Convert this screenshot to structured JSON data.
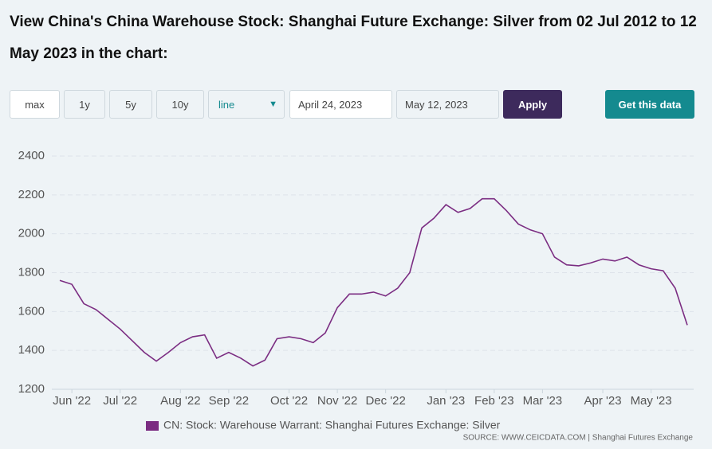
{
  "header": {
    "title": "View China's China Warehouse Stock: Shanghai Future Exchange: Silver from 02 Jul 2012 to 12 May 2023 in the chart:"
  },
  "controls": {
    "ranges": [
      "max",
      "1y",
      "5y",
      "10y"
    ],
    "chart_type": "line",
    "start_date": "April 24, 2023",
    "end_date": "May 12, 2023",
    "apply": "Apply",
    "get_data": "Get this data"
  },
  "chart_data": {
    "type": "line",
    "categories": [
      null,
      "Jun '22",
      null,
      null,
      null,
      "Jul '22",
      null,
      null,
      null,
      null,
      "Aug '22",
      null,
      null,
      null,
      "Sep '22",
      null,
      null,
      null,
      null,
      "Oct '22",
      null,
      null,
      null,
      "Nov '22",
      null,
      null,
      null,
      "Dec '22",
      null,
      null,
      null,
      null,
      "Jan '23",
      null,
      null,
      null,
      "Feb '23",
      null,
      null,
      null,
      "Mar '23",
      null,
      null,
      null,
      null,
      "Apr '23",
      null,
      null,
      null,
      "May '23",
      null,
      null,
      null
    ],
    "series": [
      {
        "name": "CN: Stock: Warehouse Warrant: Shanghai Futures Exchange: Silver",
        "color": "#7b2d82",
        "values": [
          1760,
          1740,
          1640,
          1610,
          1560,
          1510,
          1450,
          1390,
          1345,
          1390,
          1440,
          1470,
          1480,
          1360,
          1390,
          1360,
          1320,
          1350,
          1460,
          1470,
          1460,
          1440,
          1490,
          1620,
          1690,
          1690,
          1700,
          1680,
          1720,
          1800,
          2030,
          2080,
          2150,
          2110,
          2130,
          2180,
          2180,
          2120,
          2050,
          2020,
          2000,
          1880,
          1840,
          1835,
          1850,
          1870,
          1860,
          1880,
          1840,
          1820,
          1810,
          1720,
          1530
        ]
      }
    ],
    "ylim": [
      1200,
      2400
    ],
    "yticks": [
      1200,
      1400,
      1600,
      1800,
      2000,
      2200,
      2400
    ],
    "grid": true,
    "source": "SOURCE: WWW.CEICDATA.COM | Shanghai Futures Exchange"
  }
}
